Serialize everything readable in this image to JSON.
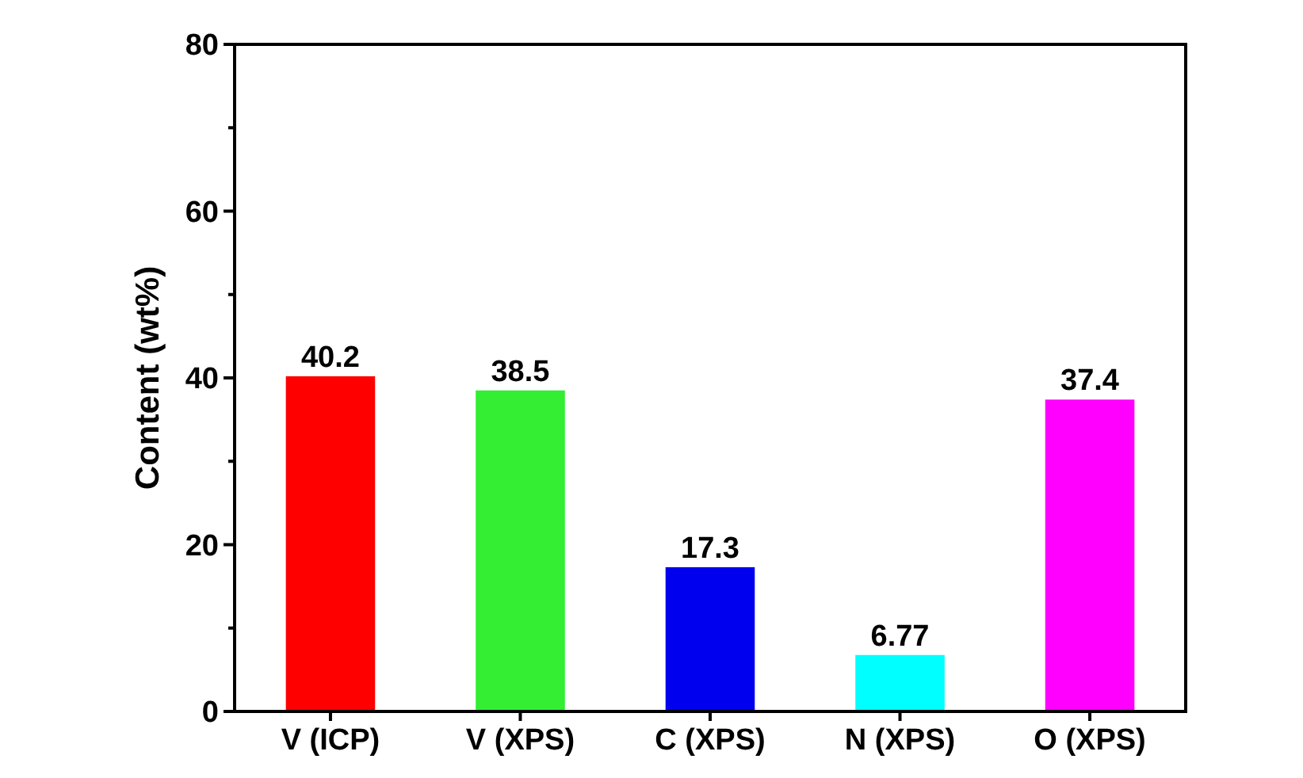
{
  "chart_data": {
    "type": "bar",
    "ylabel": "Content (wt%)",
    "categories": [
      "V (ICP)",
      "V (XPS)",
      "C (XPS)",
      "N (XPS)",
      "O (XPS)"
    ],
    "values": [
      40.2,
      38.5,
      17.3,
      6.77,
      37.4
    ],
    "colors": [
      "#ff0000",
      "#33ee33",
      "#0000ee",
      "#00ffff",
      "#ff00ff"
    ],
    "ylim": [
      0,
      80
    ],
    "yticks": [
      0,
      {
        "value": 10,
        "label": null
      },
      20,
      {
        "value": 30,
        "label": null
      },
      40,
      {
        "value": 50,
        "label": null
      },
      60,
      {
        "value": 70,
        "label": null
      },
      80
    ],
    "data_labels": true
  }
}
